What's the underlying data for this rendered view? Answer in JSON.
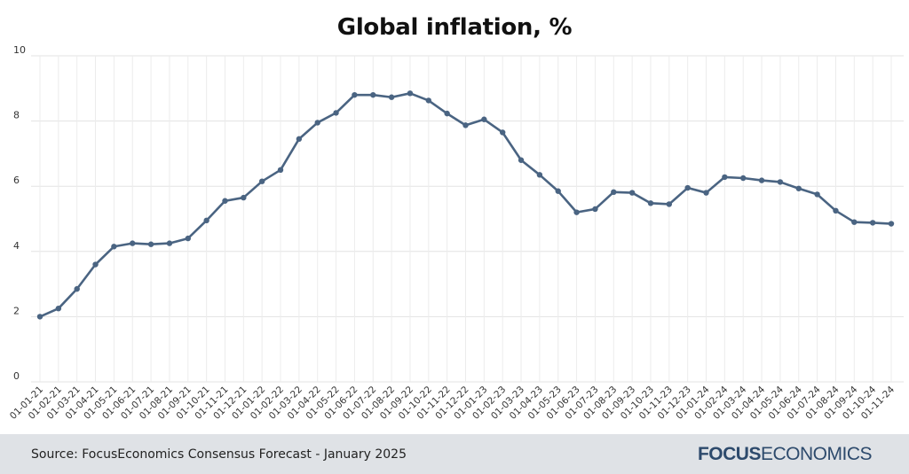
{
  "chart_data": {
    "type": "line",
    "title": "Global inflation, %",
    "xlabel": "",
    "ylabel": "",
    "ylim": [
      0,
      10
    ],
    "yticks": [
      "0",
      "2",
      "4",
      "6",
      "8",
      "10"
    ],
    "grid": true,
    "legend": "none",
    "line_color": "#4a6482",
    "categories": [
      "01-01-21",
      "01-02-21",
      "01-03-21",
      "01-04-21",
      "01-05-21",
      "01-06-21",
      "01-07-21",
      "01-08-21",
      "01-09-21",
      "01-10-21",
      "01-11-21",
      "01-12-21",
      "01-01-22",
      "01-02-22",
      "01-03-22",
      "01-04-22",
      "01-05-22",
      "01-06-22",
      "01-07-22",
      "01-08-22",
      "01-09-22",
      "01-10-22",
      "01-11-22",
      "01-12-22",
      "01-01-23",
      "01-02-23",
      "01-03-23",
      "01-04-23",
      "01-05-23",
      "01-06-23",
      "01-07-23",
      "01-08-23",
      "01-09-23",
      "01-10-23",
      "01-11-23",
      "01-12-23",
      "01-01-24",
      "01-02-24",
      "01-03-24",
      "01-04-24",
      "01-05-24",
      "01-06-24",
      "01-07-24",
      "01-08-24",
      "01-09-24",
      "01-10-24",
      "01-11-24"
    ],
    "values": [
      2.0,
      2.25,
      2.85,
      3.6,
      4.15,
      4.25,
      4.22,
      4.25,
      4.4,
      4.95,
      5.55,
      5.65,
      6.15,
      6.5,
      7.45,
      7.95,
      8.25,
      8.8,
      8.8,
      8.73,
      8.85,
      8.63,
      8.23,
      7.87,
      8.05,
      7.65,
      6.8,
      6.35,
      5.85,
      5.2,
      5.3,
      5.82,
      5.8,
      5.48,
      5.45,
      5.95,
      5.8,
      6.28,
      6.25,
      6.18,
      6.13,
      5.93,
      5.75,
      5.25,
      4.9,
      4.88,
      4.85
    ]
  },
  "footer": {
    "source": "Source: FocusEconomics Consensus Forecast - January 2025",
    "logo_bold": "FOCUS",
    "logo_light": "ECONOMICS"
  }
}
